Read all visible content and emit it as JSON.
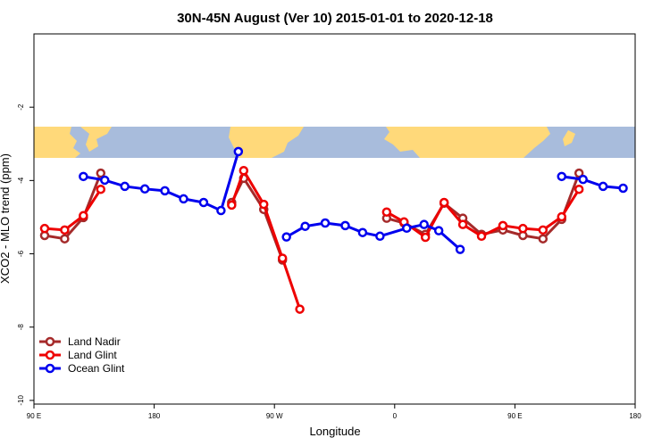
{
  "chart_data": {
    "type": "line",
    "title": "30N-45N August (Ver 10)   2015-01-01 to 2020-12-18",
    "x_label": "Longitude",
    "y_label": "XCO2 - MLO trend (ppm)",
    "xlim": [
      90,
      540
    ],
    "ylim": [
      -10.1,
      0
    ],
    "xticks": [
      {
        "value": 90,
        "label": "90 E"
      },
      {
        "value": 180,
        "label": "180"
      },
      {
        "value": 270,
        "label": "90 W"
      },
      {
        "value": 360,
        "label": "0"
      },
      {
        "value": 450,
        "label": "90 E"
      },
      {
        "value": 540,
        "label": "180"
      }
    ],
    "yticks": [
      -2,
      -4,
      -6,
      -8,
      -10
    ],
    "legend": "bottom-left",
    "series": [
      {
        "name": "Land Nadir",
        "color": "#a52a2a",
        "x": [
          98,
          113,
          127,
          140,
          null,
          238,
          247,
          262,
          276,
          null,
          354,
          367,
          383,
          397,
          411,
          425,
          441,
          456,
          471,
          485,
          498
        ],
        "values": [
          -5.5,
          -5.59,
          -5.01,
          -3.8,
          null,
          -4.6,
          -3.94,
          -4.79,
          -6.17,
          null,
          -5.03,
          -5.16,
          -5.47,
          -4.62,
          -5.03,
          -5.47,
          -5.35,
          -5.5,
          -5.59,
          -5.06,
          -3.8
        ]
      },
      {
        "name": "Land Glint",
        "color": "#ee0000",
        "x": [
          98,
          113,
          127,
          140,
          null,
          238,
          247,
          262,
          276,
          289,
          null,
          354,
          367,
          383,
          397,
          411,
          425,
          441,
          456,
          471,
          485,
          498
        ],
        "values": [
          -5.31,
          -5.35,
          -4.96,
          -4.24,
          null,
          -4.67,
          -3.73,
          -4.65,
          -6.12,
          -7.51,
          null,
          -4.86,
          -5.13,
          -5.55,
          -4.6,
          -5.2,
          -5.52,
          -5.23,
          -5.31,
          -5.35,
          -4.99,
          -4.24
        ]
      },
      {
        "name": "Ocean Glint",
        "color": "#0000ee",
        "x": [
          127,
          143,
          158,
          173,
          188,
          202,
          217,
          230,
          243,
          null,
          279,
          293,
          308,
          323,
          336,
          349,
          369,
          382,
          393,
          409,
          null,
          485,
          501,
          516,
          531
        ],
        "values": [
          -3.89,
          -3.99,
          -4.16,
          -4.23,
          -4.28,
          -4.5,
          -4.6,
          -4.82,
          -3.21,
          null,
          -5.54,
          -5.25,
          -5.16,
          -5.23,
          -5.42,
          -5.52,
          -5.3,
          -5.2,
          -5.37,
          -5.88,
          null,
          -3.89,
          -3.97,
          -4.16,
          -4.21
        ]
      }
    ]
  }
}
